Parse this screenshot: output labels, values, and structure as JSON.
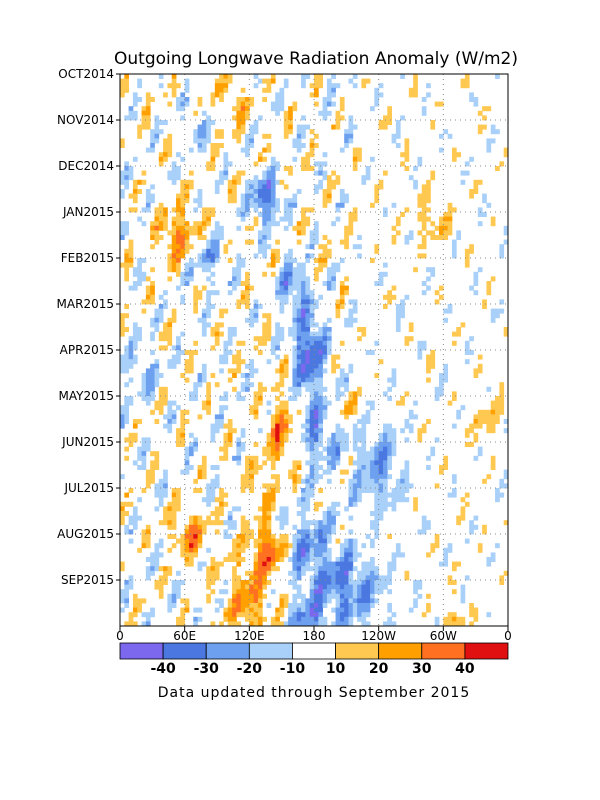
{
  "chart_data": {
    "type": "heatmap",
    "title": "Outgoing Longwave Radiation Anomaly (W/m2)",
    "footer": "Data updated through September 2015",
    "x_ticks": [
      "0",
      "60E",
      "120E",
      "180",
      "120W",
      "60W",
      "0"
    ],
    "x_range_deg": [
      0,
      360
    ],
    "y_ticks": [
      "OCT2014",
      "NOV2014",
      "DEC2014",
      "JAN2015",
      "FEB2015",
      "MAR2015",
      "APR2015",
      "MAY2015",
      "JUN2015",
      "JUL2015",
      "AUG2015",
      "SEP2015"
    ],
    "colorbar": {
      "labels": [
        "-40",
        "-30",
        "-20",
        "-10",
        "10",
        "20",
        "30",
        "40"
      ],
      "colors": [
        "#7b68ee",
        "#4a78e0",
        "#6ea0f0",
        "#a8d0f8",
        "#ffffff",
        "#ffc850",
        "#ffa000",
        "#ff7020",
        "#e01010"
      ]
    },
    "anomalies": [
      {
        "lon": 135,
        "month": 2.7,
        "lon_half": 14,
        "months_half": 0.5,
        "value": -35
      },
      {
        "lon": 160,
        "month": 4.6,
        "lon_half": 12,
        "months_half": 0.5,
        "value": -30
      },
      {
        "lon": 175,
        "month": 6.0,
        "lon_half": 14,
        "months_half": 0.9,
        "value": -40
      },
      {
        "lon": 185,
        "month": 7.8,
        "lon_half": 20,
        "months_half": 0.9,
        "value": -25
      },
      {
        "lon": 240,
        "month": 8.5,
        "lon_half": 22,
        "months_half": 0.9,
        "value": -25
      },
      {
        "lon": 170,
        "month": 10.2,
        "lon_half": 30,
        "months_half": 0.7,
        "value": -25
      },
      {
        "lon": 210,
        "month": 11.2,
        "lon_half": 35,
        "months_half": 0.8,
        "value": -30
      },
      {
        "lon": 175,
        "month": 12.0,
        "lon_half": 15,
        "months_half": 0.6,
        "value": -25
      },
      {
        "lon": 80,
        "month": 4.0,
        "lon_half": 18,
        "months_half": 0.5,
        "value": -20
      },
      {
        "lon": 20,
        "month": 6.5,
        "lon_half": 15,
        "months_half": 0.6,
        "value": -15
      },
      {
        "lon": 70,
        "month": 1.2,
        "lon_half": 12,
        "months_half": 0.4,
        "value": -15
      },
      {
        "lon": 55,
        "month": 3.5,
        "lon_half": 18,
        "months_half": 0.6,
        "value": 30
      },
      {
        "lon": 150,
        "month": 7.8,
        "lon_half": 15,
        "months_half": 0.9,
        "value": 25
      },
      {
        "lon": 130,
        "month": 9.0,
        "lon_half": 10,
        "months_half": 0.5,
        "value": 20
      },
      {
        "lon": 65,
        "month": 10.0,
        "lon_half": 18,
        "months_half": 0.5,
        "value": 25
      },
      {
        "lon": 140,
        "month": 10.3,
        "lon_half": 16,
        "months_half": 0.5,
        "value": 45
      },
      {
        "lon": 120,
        "month": 11.5,
        "lon_half": 20,
        "months_half": 1.0,
        "value": 25
      },
      {
        "lon": 205,
        "month": 7.3,
        "lon_half": 14,
        "months_half": 0.4,
        "value": 15
      },
      {
        "lon": 290,
        "month": 3.2,
        "lon_half": 18,
        "months_half": 0.5,
        "value": 15
      },
      {
        "lon": 105,
        "month": 0.6,
        "lon_half": 12,
        "months_half": 0.5,
        "value": 20
      },
      {
        "lon": 340,
        "month": 7.5,
        "lon_half": 12,
        "months_half": 0.4,
        "value": 15
      },
      {
        "lon": 310,
        "month": 12.0,
        "lon_half": 10,
        "months_half": 0.4,
        "value": 20
      }
    ]
  }
}
